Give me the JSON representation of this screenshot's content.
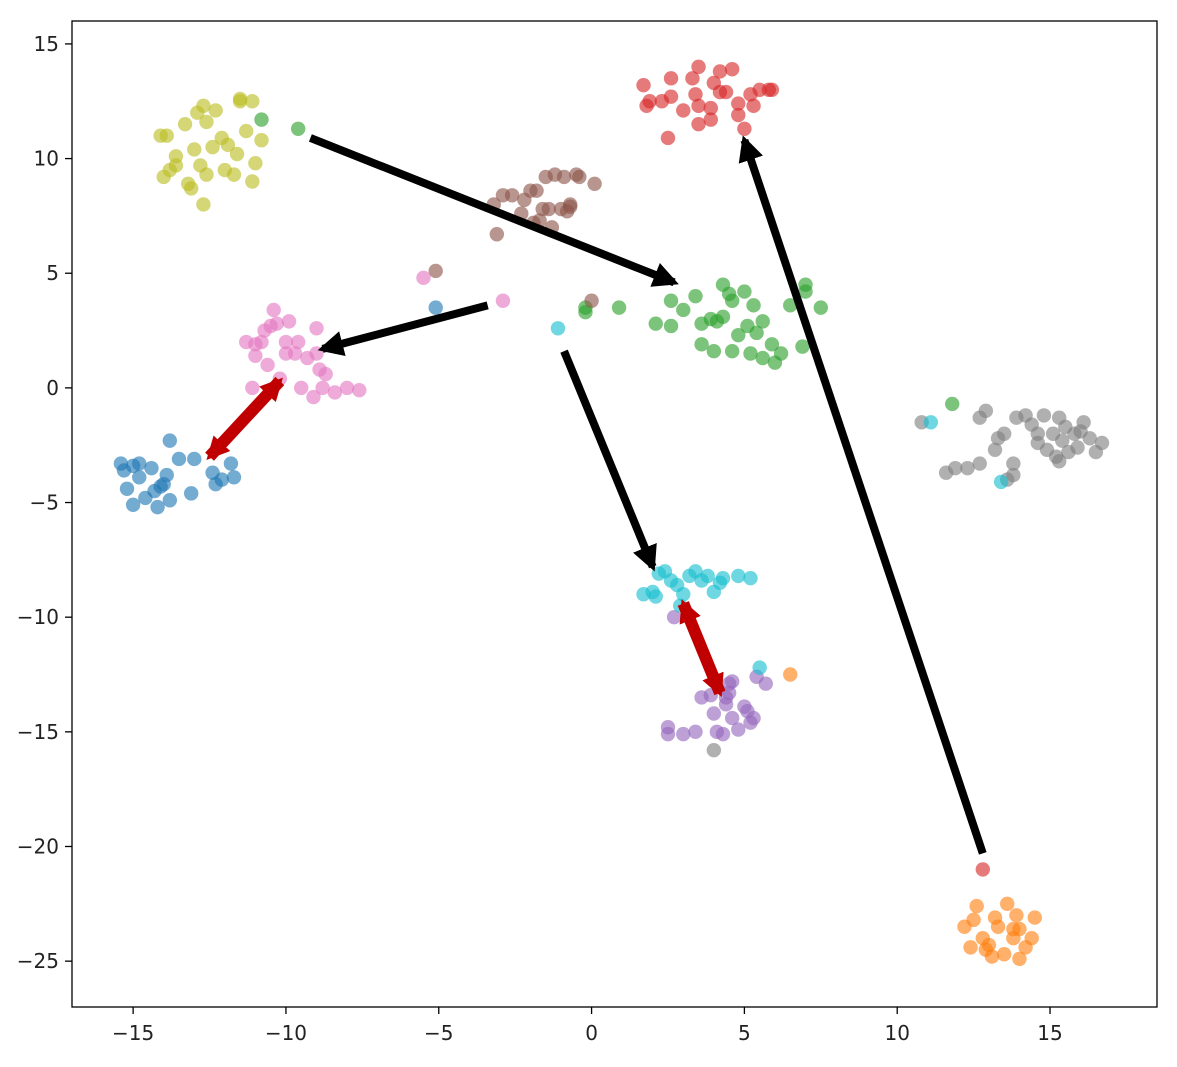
{
  "chart_data": {
    "type": "scatter",
    "title": "",
    "xlabel": "",
    "ylabel": "",
    "xlim": [
      -17,
      18.5
    ],
    "ylim": [
      -27,
      16
    ],
    "grid": false,
    "legend": "none",
    "xticks": [
      -15,
      -10,
      -5,
      0,
      5,
      10,
      15
    ],
    "xtick_labels": [
      "−15",
      "−10",
      "−5",
      "0",
      "5",
      "10",
      "15"
    ],
    "yticks": [
      15,
      10,
      5,
      0,
      -5,
      -10,
      -15,
      -20,
      -25
    ],
    "ytick_labels": [
      "15",
      "10",
      "5",
      "0",
      "−5",
      "−10",
      "−15",
      "−20",
      "−25"
    ],
    "series": [
      {
        "color": "#1f77b4",
        "points": [
          [
            -15.3,
            -3.6
          ],
          [
            -15.0,
            -3.4
          ],
          [
            -14.8,
            -3.9
          ],
          [
            -15.2,
            -4.4
          ],
          [
            -14.6,
            -4.8
          ],
          [
            -14.3,
            -4.5
          ],
          [
            -14.0,
            -4.2
          ],
          [
            -13.8,
            -4.9
          ],
          [
            -14.2,
            -5.2
          ],
          [
            -15.0,
            -5.1
          ],
          [
            -14.4,
            -3.5
          ],
          [
            -13.9,
            -3.8
          ],
          [
            -13.5,
            -3.1
          ],
          [
            -13.8,
            -2.3
          ],
          [
            -13.0,
            -3.1
          ],
          [
            -13.1,
            -4.6
          ],
          [
            -12.4,
            -3.7
          ],
          [
            -12.1,
            -4.0
          ],
          [
            -11.8,
            -3.3
          ],
          [
            -11.7,
            -3.9
          ],
          [
            -12.3,
            -4.2
          ],
          [
            -14.1,
            -4.3
          ],
          [
            -15.4,
            -3.3
          ],
          [
            -14.8,
            -3.3
          ],
          [
            -5.1,
            3.5
          ]
        ]
      },
      {
        "color": "#ff7f0e",
        "points": [
          [
            12.2,
            -23.5
          ],
          [
            12.5,
            -23.2
          ],
          [
            12.8,
            -24.0
          ],
          [
            13.0,
            -24.3
          ],
          [
            13.3,
            -23.5
          ],
          [
            13.5,
            -24.7
          ],
          [
            13.8,
            -24.0
          ],
          [
            14.0,
            -23.6
          ],
          [
            14.2,
            -24.4
          ],
          [
            14.4,
            -24.0
          ],
          [
            13.6,
            -22.5
          ],
          [
            13.9,
            -23.0
          ],
          [
            12.6,
            -22.6
          ],
          [
            12.4,
            -24.4
          ],
          [
            13.1,
            -24.8
          ],
          [
            14.0,
            -24.9
          ],
          [
            14.5,
            -23.1
          ],
          [
            13.2,
            -23.1
          ],
          [
            13.8,
            -23.6
          ],
          [
            12.9,
            -24.5
          ],
          [
            6.5,
            -12.5
          ]
        ]
      },
      {
        "color": "#2ca02c",
        "points": [
          [
            -10.8,
            11.7
          ],
          [
            -9.6,
            11.3
          ],
          [
            -0.2,
            3.3
          ],
          [
            -0.2,
            3.5
          ],
          [
            0.9,
            3.5
          ],
          [
            2.1,
            2.8
          ],
          [
            2.6,
            2.7
          ],
          [
            2.6,
            3.8
          ],
          [
            3.0,
            3.4
          ],
          [
            3.4,
            4.0
          ],
          [
            3.6,
            2.8
          ],
          [
            3.6,
            1.9
          ],
          [
            4.0,
            1.6
          ],
          [
            4.3,
            4.5
          ],
          [
            4.6,
            3.8
          ],
          [
            4.3,
            3.1
          ],
          [
            4.8,
            2.3
          ],
          [
            5.1,
            2.7
          ],
          [
            5.3,
            3.6
          ],
          [
            5.2,
            1.5
          ],
          [
            5.6,
            2.9
          ],
          [
            5.6,
            1.3
          ],
          [
            5.9,
            1.9
          ],
          [
            6.0,
            1.1
          ],
          [
            6.5,
            3.6
          ],
          [
            7.0,
            4.5
          ],
          [
            7.0,
            4.2
          ],
          [
            7.5,
            3.5
          ],
          [
            6.9,
            1.8
          ],
          [
            4.5,
            4.1
          ],
          [
            5.0,
            4.2
          ],
          [
            4.1,
            2.9
          ],
          [
            4.6,
            1.6
          ],
          [
            6.2,
            1.5
          ],
          [
            5.4,
            2.4
          ],
          [
            3.9,
            3.0
          ],
          [
            11.8,
            -0.7
          ]
        ]
      },
      {
        "color": "#d62728",
        "points": [
          [
            1.7,
            13.2
          ],
          [
            1.9,
            12.5
          ],
          [
            2.3,
            12.5
          ],
          [
            2.6,
            13.5
          ],
          [
            2.6,
            12.7
          ],
          [
            3.3,
            13.5
          ],
          [
            3.4,
            12.8
          ],
          [
            3.5,
            12.3
          ],
          [
            3.5,
            11.5
          ],
          [
            3.9,
            11.7
          ],
          [
            3.9,
            12.2
          ],
          [
            4.0,
            13.3
          ],
          [
            4.2,
            13.8
          ],
          [
            4.4,
            12.9
          ],
          [
            4.6,
            13.9
          ],
          [
            4.8,
            12.4
          ],
          [
            4.8,
            11.9
          ],
          [
            5.0,
            11.3
          ],
          [
            5.2,
            12.8
          ],
          [
            5.3,
            12.3
          ],
          [
            5.5,
            13.0
          ],
          [
            5.8,
            13.0
          ],
          [
            5.9,
            13.0
          ],
          [
            3.5,
            14.0
          ],
          [
            4.2,
            12.9
          ],
          [
            1.8,
            12.3
          ],
          [
            2.5,
            10.9
          ],
          [
            3.0,
            12.1
          ],
          [
            12.8,
            -21.0
          ]
        ]
      },
      {
        "color": "#9467bd",
        "points": [
          [
            2.5,
            -14.8
          ],
          [
            2.5,
            -15.1
          ],
          [
            3.0,
            -15.1
          ],
          [
            3.4,
            -15.0
          ],
          [
            3.6,
            -13.5
          ],
          [
            3.9,
            -13.4
          ],
          [
            4.0,
            -14.2
          ],
          [
            4.1,
            -15.0
          ],
          [
            4.3,
            -15.1
          ],
          [
            4.4,
            -13.8
          ],
          [
            4.5,
            -13.3
          ],
          [
            4.6,
            -12.8
          ],
          [
            4.6,
            -14.4
          ],
          [
            4.8,
            -14.9
          ],
          [
            5.0,
            -13.9
          ],
          [
            5.2,
            -14.6
          ],
          [
            5.3,
            -14.4
          ],
          [
            5.4,
            -12.6
          ],
          [
            5.7,
            -12.9
          ],
          [
            2.7,
            -10.0
          ],
          [
            4.4,
            -13.5
          ],
          [
            4.5,
            -12.9
          ],
          [
            5.1,
            -14.1
          ]
        ]
      },
      {
        "color": "#8c564b",
        "points": [
          [
            -5.1,
            5.1
          ],
          [
            -3.2,
            8.0
          ],
          [
            -3.1,
            6.7
          ],
          [
            -2.9,
            8.4
          ],
          [
            -2.6,
            8.4
          ],
          [
            -2.3,
            7.6
          ],
          [
            -2.2,
            8.2
          ],
          [
            -2.0,
            8.6
          ],
          [
            -1.9,
            7.2
          ],
          [
            -1.7,
            7.3
          ],
          [
            -1.6,
            7.8
          ],
          [
            -1.8,
            8.6
          ],
          [
            -1.5,
            9.2
          ],
          [
            -1.4,
            7.8
          ],
          [
            -1.2,
            9.3
          ],
          [
            -1.0,
            7.8
          ],
          [
            -0.9,
            9.2
          ],
          [
            -0.7,
            8.0
          ],
          [
            -0.5,
            9.3
          ],
          [
            -0.4,
            9.2
          ],
          [
            -0.7,
            7.9
          ],
          [
            -1.3,
            7.0
          ],
          [
            0.1,
            8.9
          ],
          [
            -0.8,
            7.7
          ],
          [
            0.0,
            3.8
          ]
        ]
      },
      {
        "color": "#e377c2",
        "points": [
          [
            -5.5,
            4.8
          ],
          [
            -2.9,
            3.8
          ],
          [
            -11.3,
            2.0
          ],
          [
            -11.0,
            1.4
          ],
          [
            -11.0,
            1.9
          ],
          [
            -10.8,
            2.0
          ],
          [
            -10.6,
            1.0
          ],
          [
            -10.7,
            2.5
          ],
          [
            -10.5,
            2.7
          ],
          [
            -10.4,
            3.4
          ],
          [
            -10.3,
            2.8
          ],
          [
            -10.0,
            2.0
          ],
          [
            -10.0,
            1.5
          ],
          [
            -9.7,
            1.5
          ],
          [
            -9.6,
            2.0
          ],
          [
            -9.3,
            1.3
          ],
          [
            -9.0,
            1.5
          ],
          [
            -8.9,
            0.8
          ],
          [
            -8.7,
            0.6
          ],
          [
            -9.5,
            0.0
          ],
          [
            -9.1,
            -0.4
          ],
          [
            -8.8,
            0.0
          ],
          [
            -8.4,
            -0.2
          ],
          [
            -8.0,
            0.0
          ],
          [
            -7.6,
            -0.1
          ],
          [
            -10.2,
            0.4
          ],
          [
            -11.1,
            0.0
          ],
          [
            -9.0,
            2.6
          ],
          [
            -9.9,
            2.9
          ]
        ]
      },
      {
        "color": "#7f7f7f",
        "points": [
          [
            4.0,
            -15.8
          ],
          [
            10.8,
            -1.5
          ],
          [
            11.6,
            -3.7
          ],
          [
            11.9,
            -3.5
          ],
          [
            12.3,
            -3.5
          ],
          [
            12.7,
            -3.3
          ],
          [
            12.7,
            -1.3
          ],
          [
            12.9,
            -1.0
          ],
          [
            13.2,
            -2.7
          ],
          [
            13.3,
            -2.2
          ],
          [
            13.5,
            -2.0
          ],
          [
            13.6,
            -4.0
          ],
          [
            13.8,
            -3.3
          ],
          [
            13.8,
            -3.8
          ],
          [
            13.9,
            -1.3
          ],
          [
            14.2,
            -1.2
          ],
          [
            14.4,
            -1.6
          ],
          [
            14.6,
            -2.0
          ],
          [
            14.8,
            -1.2
          ],
          [
            14.9,
            -2.7
          ],
          [
            15.1,
            -2.0
          ],
          [
            15.2,
            -3.0
          ],
          [
            15.4,
            -2.3
          ],
          [
            15.5,
            -1.7
          ],
          [
            15.6,
            -2.8
          ],
          [
            15.8,
            -2.0
          ],
          [
            15.9,
            -2.6
          ],
          [
            16.1,
            -1.5
          ],
          [
            16.3,
            -2.2
          ],
          [
            16.5,
            -2.8
          ],
          [
            16.7,
            -2.4
          ],
          [
            15.3,
            -1.3
          ],
          [
            14.6,
            -2.4
          ],
          [
            15.3,
            -3.2
          ],
          [
            16.0,
            -1.9
          ]
        ]
      },
      {
        "color": "#bcbd22",
        "points": [
          [
            -13.9,
            11.0
          ],
          [
            -14.1,
            11.0
          ],
          [
            -13.8,
            9.5
          ],
          [
            -13.6,
            10.1
          ],
          [
            -13.3,
            11.5
          ],
          [
            -13.1,
            8.7
          ],
          [
            -13.0,
            10.4
          ],
          [
            -12.8,
            9.7
          ],
          [
            -12.7,
            8.0
          ],
          [
            -12.6,
            11.6
          ],
          [
            -12.4,
            10.5
          ],
          [
            -12.3,
            12.1
          ],
          [
            -12.1,
            10.9
          ],
          [
            -11.9,
            10.6
          ],
          [
            -11.7,
            9.3
          ],
          [
            -11.6,
            10.2
          ],
          [
            -11.5,
            12.6
          ],
          [
            -11.3,
            11.2
          ],
          [
            -11.1,
            9.0
          ],
          [
            -11.0,
            9.8
          ],
          [
            -10.8,
            10.8
          ],
          [
            -12.9,
            12.0
          ],
          [
            -12.6,
            9.3
          ],
          [
            -13.6,
            9.7
          ],
          [
            -12.0,
            9.5
          ],
          [
            -13.2,
            8.9
          ],
          [
            -12.7,
            12.3
          ],
          [
            -11.1,
            12.5
          ],
          [
            -11.5,
            12.5
          ],
          [
            -14.0,
            9.2
          ]
        ]
      },
      {
        "color": "#17becf",
        "points": [
          [
            -1.1,
            2.6
          ],
          [
            11.1,
            -1.5
          ],
          [
            13.4,
            -4.1
          ],
          [
            2.0,
            -8.9
          ],
          [
            2.1,
            -9.1
          ],
          [
            2.2,
            -8.1
          ],
          [
            2.4,
            -8.0
          ],
          [
            2.6,
            -8.4
          ],
          [
            2.8,
            -8.6
          ],
          [
            3.0,
            -9.0
          ],
          [
            3.2,
            -8.2
          ],
          [
            3.4,
            -8.0
          ],
          [
            3.6,
            -8.4
          ],
          [
            3.8,
            -8.2
          ],
          [
            4.0,
            -8.9
          ],
          [
            4.2,
            -8.5
          ],
          [
            4.3,
            -8.3
          ],
          [
            4.8,
            -8.2
          ],
          [
            5.2,
            -8.3
          ],
          [
            1.7,
            -9.0
          ],
          [
            2.9,
            -9.5
          ],
          [
            5.5,
            -12.2
          ]
        ]
      }
    ],
    "annotations": [
      {
        "type": "arrow",
        "color": "#000000",
        "from": [
          -9.2,
          10.9
        ],
        "to": [
          2.7,
          4.6
        ]
      },
      {
        "type": "arrow",
        "color": "#000000",
        "from": [
          -3.4,
          3.6
        ],
        "to": [
          -8.8,
          1.7
        ]
      },
      {
        "type": "arrow",
        "color": "#000000",
        "from": [
          -0.9,
          1.6
        ],
        "to": [
          2.0,
          -7.8
        ]
      },
      {
        "type": "arrow",
        "color": "#000000",
        "from": [
          12.8,
          -20.3
        ],
        "to": [
          5.0,
          10.8
        ]
      },
      {
        "type": "double-arrow",
        "color": "#c00000",
        "from": [
          -10.2,
          0.3
        ],
        "to": [
          -12.5,
          -3.0
        ]
      },
      {
        "type": "double-arrow",
        "color": "#c00000",
        "from": [
          3.0,
          -9.4
        ],
        "to": [
          4.2,
          -13.3
        ]
      }
    ]
  }
}
